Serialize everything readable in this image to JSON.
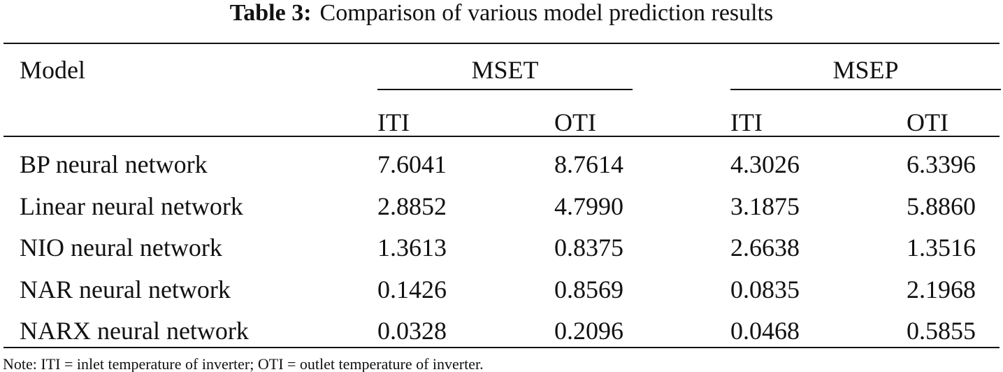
{
  "title": {
    "label": "Table 3:",
    "text": "Comparison of various model prediction results"
  },
  "table": {
    "header": {
      "model": "Model",
      "groups": [
        {
          "label": "MSET",
          "columns": [
            "ITI",
            "OTI"
          ]
        },
        {
          "label": "MSEP",
          "columns": [
            "ITI",
            "OTI"
          ]
        }
      ]
    },
    "rows": [
      [
        "BP neural network",
        "7.6041",
        "8.7614",
        "4.3026",
        "6.3396"
      ],
      [
        "Linear neural network",
        "2.8852",
        "4.7990",
        "3.1875",
        "5.8860"
      ],
      [
        "NIO neural network",
        "1.3613",
        "0.8375",
        "2.6638",
        "1.3516"
      ],
      [
        "NAR neural network",
        "0.1426",
        "0.8569",
        "0.0835",
        "2.1968"
      ],
      [
        "NARX neural network",
        "0.0328",
        "0.2096",
        "0.0468",
        "0.5855"
      ]
    ]
  },
  "note": "Note: ITI = inlet temperature of inverter; OTI = outlet temperature of inverter."
}
